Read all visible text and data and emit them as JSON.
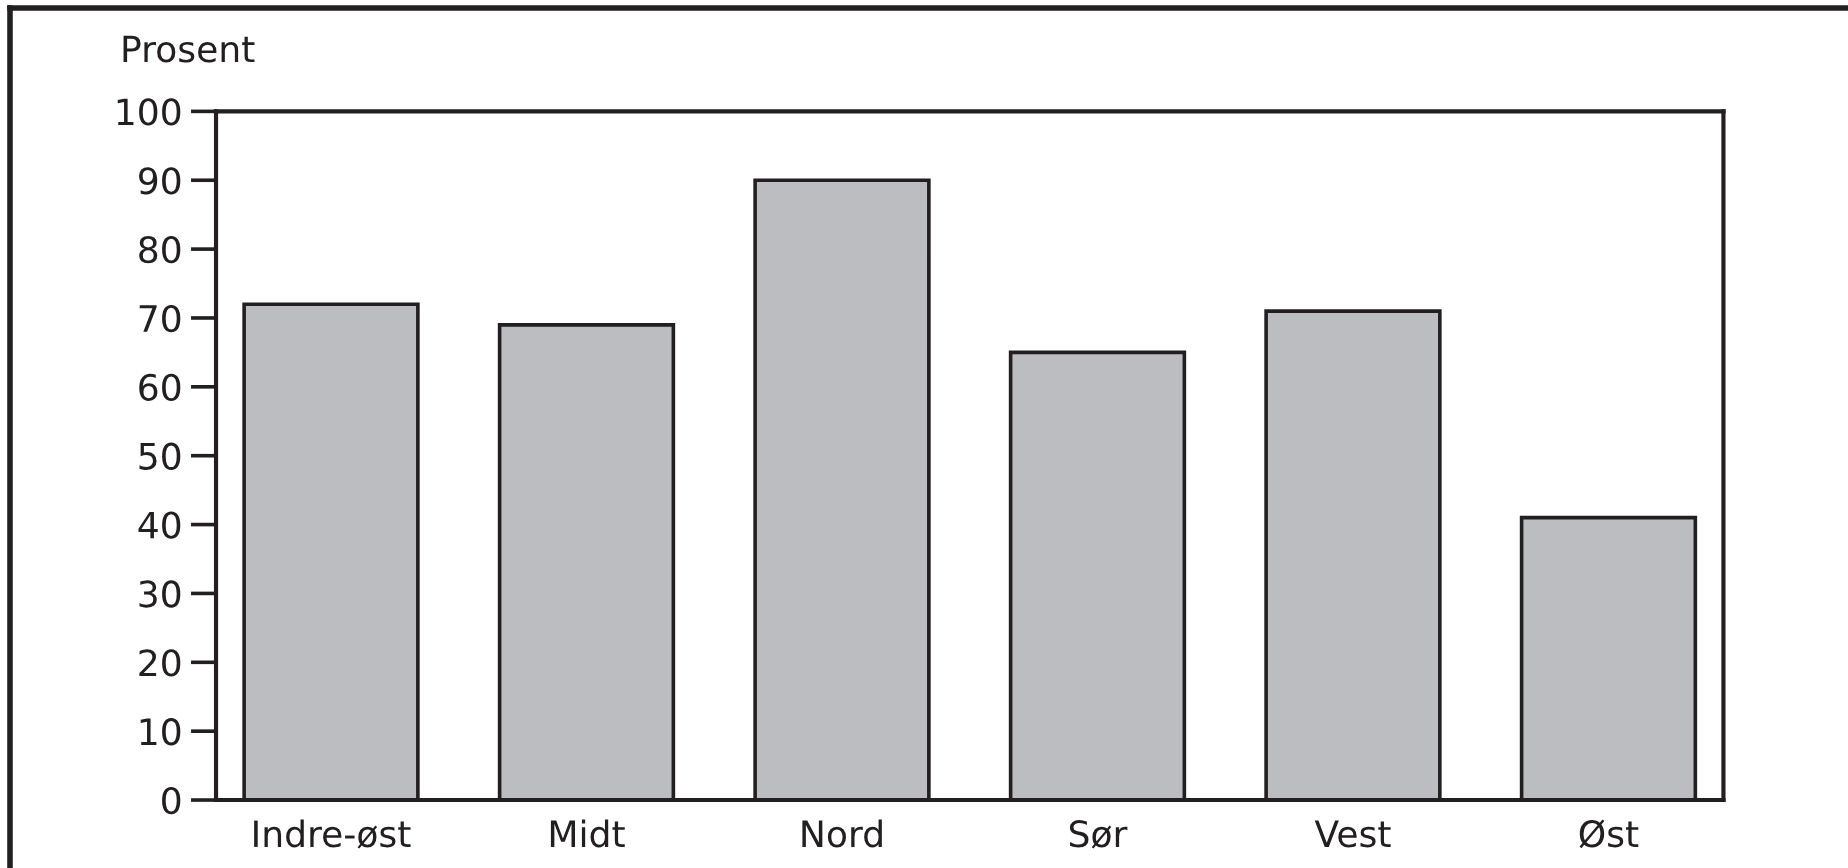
{
  "chart_data": {
    "type": "bar",
    "ylabel": "Prosent",
    "categories": [
      "Indre-øst",
      "Midt",
      "Nord",
      "Sør",
      "Vest",
      "Øst"
    ],
    "values": [
      72,
      69,
      90,
      65,
      71,
      41
    ],
    "color": "#bcbdc1",
    "ylim": [
      0,
      100
    ],
    "yticks": [
      0,
      10,
      20,
      30,
      40,
      50,
      60,
      70,
      80,
      90,
      100
    ]
  }
}
